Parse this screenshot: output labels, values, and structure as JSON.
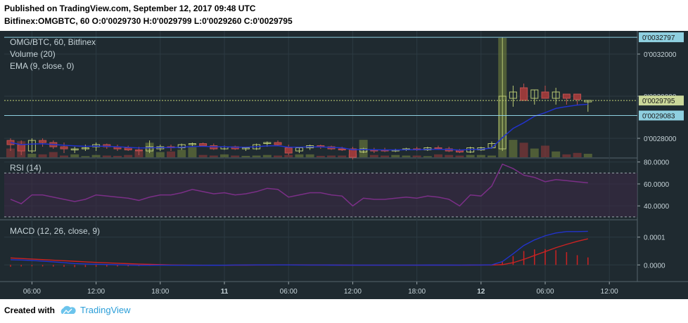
{
  "header": {
    "line1": "Published on TradingView.com, September 12, 2017 09:48 UTC",
    "line2": "Bitfinex:OMGBTC, 60  O:0'0029730 H:0'0029799 L:0'0029260 C:0'0029795"
  },
  "footer": {
    "created_with": "Created with",
    "brand": "TradingView"
  },
  "colors": {
    "background": "#1f2a30",
    "grid": "#2c3a42",
    "bull": "#76863e",
    "bear": "#9a3a3a",
    "ema": "#2233cc",
    "rsi": "#7b2f87",
    "macd": "#2233cc",
    "signal": "#cc2222",
    "hist": "#cc2222",
    "axis_text": "#c6d3d8",
    "price_box": "#8fd0e0",
    "last_box": "#cbd89a"
  },
  "panes": {
    "main": {
      "legend": [
        "OMG/BTC, 60, Bitfinex",
        "Volume (20)",
        "EMA (9, close, 0)"
      ],
      "y_ticks": [
        "0'0032000",
        "0'0030000",
        "0'0028000"
      ],
      "y_tick_values": [
        0.0032,
        0.003,
        0.0028
      ],
      "ylim": [
        0.00271,
        0.00331
      ],
      "price_labels": [
        {
          "text": "0'0032797",
          "value": 0.0032797,
          "kind": "high"
        },
        {
          "text": "0'0029795",
          "value": 0.0029795,
          "kind": "last"
        },
        {
          "text": "0'0029083",
          "value": 0.0029083,
          "kind": "low"
        }
      ]
    },
    "rsi": {
      "legend": "RSI (14)",
      "y_ticks": [
        "80.0000",
        "60.0000",
        "40.0000"
      ],
      "y_tick_values": [
        80,
        60,
        40
      ],
      "ylim": [
        28,
        83
      ],
      "band": [
        30,
        70
      ]
    },
    "macd": {
      "legend": "MACD (12, 26, close, 9)",
      "y_ticks": [
        "0.0001",
        "0.0000"
      ],
      "y_tick_values": [
        0.0001,
        0.0
      ],
      "ylim": [
        -6e-05,
        0.00016
      ]
    }
  },
  "x_axis": {
    "ticks": [
      {
        "label": "06:00",
        "index": 2,
        "bold": false
      },
      {
        "label": "12:00",
        "index": 8,
        "bold": false
      },
      {
        "label": "18:00",
        "index": 14,
        "bold": false
      },
      {
        "label": "11",
        "index": 20,
        "bold": true
      },
      {
        "label": "06:00",
        "index": 26,
        "bold": false
      },
      {
        "label": "12:00",
        "index": 32,
        "bold": false
      },
      {
        "label": "18:00",
        "index": 38,
        "bold": false
      },
      {
        "label": "12",
        "index": 44,
        "bold": true
      },
      {
        "label": "06:00",
        "index": 50,
        "bold": false
      },
      {
        "label": "12:00",
        "index": 56,
        "bold": false
      }
    ]
  },
  "chart_data": {
    "type": "candlestick",
    "interval": "60",
    "symbol": "OMG/BTC",
    "exchange": "Bitfinex",
    "candles": [
      {
        "o": 0.00279,
        "h": 0.0028,
        "l": 0.00274,
        "c": 0.00277
      },
      {
        "o": 0.00277,
        "h": 0.00279,
        "l": 0.00272,
        "c": 0.00274
      },
      {
        "o": 0.00274,
        "h": 0.0028,
        "l": 0.00273,
        "c": 0.00279
      },
      {
        "o": 0.00279,
        "h": 0.0028,
        "l": 0.00276,
        "c": 0.00278
      },
      {
        "o": 0.00278,
        "h": 0.00279,
        "l": 0.00275,
        "c": 0.00276
      },
      {
        "o": 0.00276,
        "h": 0.00278,
        "l": 0.00273,
        "c": 0.00275
      },
      {
        "o": 0.002745,
        "h": 0.00276,
        "l": 0.00273,
        "c": 0.00275
      },
      {
        "o": 0.00275,
        "h": 0.00277,
        "l": 0.00274,
        "c": 0.002755
      },
      {
        "o": 0.00276,
        "h": 0.00278,
        "l": 0.00274,
        "c": 0.00277
      },
      {
        "o": 0.00277,
        "h": 0.002775,
        "l": 0.00275,
        "c": 0.00276
      },
      {
        "o": 0.00276,
        "h": 0.00277,
        "l": 0.00274,
        "c": 0.00275
      },
      {
        "o": 0.002755,
        "h": 0.002765,
        "l": 0.00274,
        "c": 0.002745
      },
      {
        "o": 0.002745,
        "h": 0.00276,
        "l": 0.00272,
        "c": 0.00274
      },
      {
        "o": 0.00274,
        "h": 0.00279,
        "l": 0.00273,
        "c": 0.00276
      },
      {
        "o": 0.00275,
        "h": 0.00277,
        "l": 0.00274,
        "c": 0.00276
      },
      {
        "o": 0.00276,
        "h": 0.00277,
        "l": 0.00274,
        "c": 0.002755
      },
      {
        "o": 0.002755,
        "h": 0.002775,
        "l": 0.002745,
        "c": 0.00277
      },
      {
        "o": 0.00277,
        "h": 0.00278,
        "l": 0.00276,
        "c": 0.002775
      },
      {
        "o": 0.002775,
        "h": 0.00278,
        "l": 0.00276,
        "c": 0.002765
      },
      {
        "o": 0.002765,
        "h": 0.002775,
        "l": 0.002745,
        "c": 0.00275
      },
      {
        "o": 0.00275,
        "h": 0.002765,
        "l": 0.002745,
        "c": 0.00276
      },
      {
        "o": 0.00276,
        "h": 0.002765,
        "l": 0.002745,
        "c": 0.00275
      },
      {
        "o": 0.00275,
        "h": 0.00276,
        "l": 0.00274,
        "c": 0.002755
      },
      {
        "o": 0.00275,
        "h": 0.002775,
        "l": 0.002745,
        "c": 0.00277
      },
      {
        "o": 0.002775,
        "h": 0.002785,
        "l": 0.00276,
        "c": 0.00278
      },
      {
        "o": 0.00278,
        "h": 0.00279,
        "l": 0.002765,
        "c": 0.00277
      },
      {
        "o": 0.002755,
        "h": 0.00277,
        "l": 0.00272,
        "c": 0.00273
      },
      {
        "o": 0.00274,
        "h": 0.00276,
        "l": 0.00273,
        "c": 0.002755
      },
      {
        "o": 0.002755,
        "h": 0.00277,
        "l": 0.002745,
        "c": 0.002765
      },
      {
        "o": 0.002765,
        "h": 0.00277,
        "l": 0.00275,
        "c": 0.00276
      },
      {
        "o": 0.00276,
        "h": 0.002765,
        "l": 0.002745,
        "c": 0.00275
      },
      {
        "o": 0.00275,
        "h": 0.00276,
        "l": 0.00274,
        "c": 0.002745
      },
      {
        "o": 0.00275,
        "h": 0.00276,
        "l": 0.0027,
        "c": 0.00271
      },
      {
        "o": 0.002735,
        "h": 0.002755,
        "l": 0.00273,
        "c": 0.00275
      },
      {
        "o": 0.002745,
        "h": 0.002755,
        "l": 0.00273,
        "c": 0.00274
      },
      {
        "o": 0.002745,
        "h": 0.002755,
        "l": 0.002735,
        "c": 0.00274
      },
      {
        "o": 0.00274,
        "h": 0.00275,
        "l": 0.002735,
        "c": 0.002745
      },
      {
        "o": 0.002745,
        "h": 0.002755,
        "l": 0.00274,
        "c": 0.00275
      },
      {
        "o": 0.00275,
        "h": 0.00276,
        "l": 0.00274,
        "c": 0.002745
      },
      {
        "o": 0.002745,
        "h": 0.00276,
        "l": 0.00274,
        "c": 0.002755
      },
      {
        "o": 0.002755,
        "h": 0.002765,
        "l": 0.002745,
        "c": 0.00275
      },
      {
        "o": 0.00275,
        "h": 0.00276,
        "l": 0.002735,
        "c": 0.00274
      },
      {
        "o": 0.002745,
        "h": 0.00275,
        "l": 0.00273,
        "c": 0.002735
      },
      {
        "o": 0.002735,
        "h": 0.00276,
        "l": 0.00273,
        "c": 0.002755
      },
      {
        "o": 0.002745,
        "h": 0.00276,
        "l": 0.00274,
        "c": 0.002755
      },
      {
        "o": 0.002755,
        "h": 0.002785,
        "l": 0.00275,
        "c": 0.002775
      },
      {
        "o": 0.00275,
        "h": 0.00328,
        "l": 0.00274,
        "c": 0.003
      },
      {
        "o": 0.00299,
        "h": 0.00305,
        "l": 0.00295,
        "c": 0.00302
      },
      {
        "o": 0.00304,
        "h": 0.00306,
        "l": 0.00298,
        "c": 0.00298
      },
      {
        "o": 0.00299,
        "h": 0.00303,
        "l": 0.00296,
        "c": 0.00303
      },
      {
        "o": 0.00302,
        "h": 0.00305,
        "l": 0.00299,
        "c": 0.00299
      },
      {
        "o": 0.00299,
        "h": 0.00304,
        "l": 0.00296,
        "c": 0.00302
      },
      {
        "o": 0.00301,
        "h": 0.00301,
        "l": 0.00296,
        "c": 0.00299
      },
      {
        "o": 0.00301,
        "h": 0.00301,
        "l": 0.00296,
        "c": 0.002985
      },
      {
        "o": 0.002973,
        "h": 0.00298,
        "l": 0.002926,
        "c": 0.00298
      }
    ],
    "volume": [
      30,
      55,
      12,
      10,
      18,
      6,
      10,
      4,
      8,
      6,
      5,
      8,
      20,
      50,
      18,
      20,
      26,
      35,
      8,
      6,
      10,
      6,
      5,
      6,
      8,
      6,
      8,
      10,
      10,
      5,
      6,
      6,
      10,
      60,
      8,
      6,
      8,
      6,
      6,
      4,
      10,
      8,
      6,
      8,
      8,
      6,
      410,
      60,
      50,
      30,
      40,
      20,
      10,
      15,
      12
    ],
    "ema": [
      0.00278,
      0.00277,
      0.002773,
      0.002774,
      0.002771,
      0.002767,
      0.002764,
      0.002762,
      0.002763,
      0.002762,
      0.00276,
      0.002757,
      0.002754,
      0.002755,
      0.002756,
      0.002756,
      0.002758,
      0.002761,
      0.002762,
      0.00276,
      0.00276,
      0.002758,
      0.002758,
      0.00276,
      0.002764,
      0.002765,
      0.002758,
      0.002758,
      0.002759,
      0.002759,
      0.002757,
      0.002755,
      0.002746,
      0.002747,
      0.002746,
      0.002745,
      0.002745,
      0.002746,
      0.002746,
      0.002748,
      0.002748,
      0.002747,
      0.002744,
      0.002747,
      0.002748,
      0.002754,
      0.002803,
      0.002847,
      0.002874,
      0.002905,
      0.002922,
      0.002942,
      0.002951,
      0.002958,
      0.002962
    ],
    "rsi": [
      46,
      42,
      50,
      50,
      48,
      46,
      44,
      46,
      50,
      49,
      48,
      47,
      45,
      48,
      50,
      50,
      52,
      55,
      53,
      51,
      52,
      50,
      51,
      53,
      56,
      55,
      48,
      50,
      52,
      52,
      50,
      49,
      40,
      47,
      46,
      46,
      47,
      48,
      47,
      49,
      48,
      46,
      40,
      50,
      49,
      58,
      78,
      74,
      68,
      66,
      62,
      64,
      63,
      62,
      61
    ],
    "macd": [
      1.85e-05,
      1.75e-05,
      1.6e-05,
      1.35e-05,
      1.1e-05,
      8e-06,
      5e-06,
      3.5e-06,
      2.5e-06,
      1.5e-06,
      5e-07,
      -5e-07,
      -1e-06,
      -1e-06,
      -8e-07,
      -1e-06,
      -1e-06,
      -1.2e-06,
      -1.4e-06,
      -1.2e-06,
      -1e-06,
      -5e-07,
      -3e-07,
      -2e-07,
      -1e-07,
      0.0,
      -2e-07,
      -3e-07,
      -4e-07,
      -5e-07,
      -6e-07,
      -7e-07,
      -8e-07,
      -8e-07,
      -8e-07,
      -8e-07,
      -7e-07,
      -7e-07,
      -7e-07,
      -6e-07,
      -6e-07,
      -6e-07,
      -7e-07,
      -5e-07,
      -3e-07,
      2e-07,
      1.2e-05,
      4e-05,
      7e-05,
      9e-05,
      0.000105,
      0.000115,
      0.00012,
      0.00012,
      0.000121
    ],
    "signal": [
      2.5e-05,
      2.3e-05,
      2.1e-05,
      1.9e-05,
      1.7e-05,
      1.5e-05,
      1.3e-05,
      1.1e-05,
      9e-06,
      7.5e-06,
      6e-06,
      4.5e-06,
      3e-06,
      2e-06,
      1e-06,
      0.0,
      -5e-07,
      -8e-07,
      -1e-06,
      -1e-06,
      -1e-06,
      -8e-07,
      -6e-07,
      -4e-07,
      -3e-07,
      -2e-07,
      -2e-07,
      -2e-07,
      -3e-07,
      -4e-07,
      -5e-07,
      -6e-07,
      -7e-07,
      -7e-07,
      -7e-07,
      -7e-07,
      -7e-07,
      -7e-07,
      -7e-07,
      -7e-07,
      -7e-07,
      -7e-07,
      -7e-07,
      -6e-07,
      -5e-07,
      -3e-07,
      1e-06,
      8e-06,
      2e-05,
      3.4e-05,
      4.8e-05,
      6.2e-05,
      7.4e-05,
      8.5e-05,
      9.4e-05
    ]
  }
}
